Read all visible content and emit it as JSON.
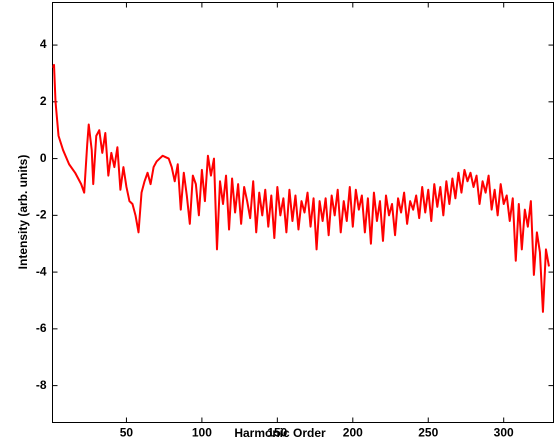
{
  "chart_data": {
    "type": "line",
    "xlabel": "Harmonic Order",
    "ylabel": "Intensity  (arb. units)",
    "xlim": [
      1,
      333
    ],
    "ylim": [
      -9.3,
      5.5
    ],
    "xticks": [
      50,
      100,
      150,
      200,
      250,
      300
    ],
    "yticks": [
      -8,
      -6,
      -4,
      -2,
      0,
      2,
      4
    ],
    "series": [
      {
        "color": "#ff0000",
        "x": [
          1,
          2,
          3,
          5,
          8,
          12,
          16,
          20,
          22,
          24,
          25,
          27,
          28,
          30,
          32,
          34,
          36,
          38,
          40,
          42,
          44,
          46,
          48,
          50,
          52,
          54,
          56,
          58,
          60,
          62,
          64,
          66,
          68,
          70,
          72,
          74,
          76,
          78,
          80,
          82,
          84,
          86,
          88,
          90,
          92,
          94,
          96,
          98,
          100,
          102,
          104,
          106,
          108,
          110,
          112,
          114,
          116,
          118,
          120,
          122,
          124,
          126,
          128,
          130,
          132,
          134,
          136,
          138,
          140,
          142,
          144,
          146,
          148,
          150,
          152,
          154,
          156,
          158,
          160,
          162,
          164,
          166,
          168,
          170,
          172,
          174,
          176,
          178,
          180,
          182,
          184,
          186,
          188,
          190,
          192,
          194,
          196,
          198,
          200,
          202,
          204,
          206,
          208,
          210,
          212,
          214,
          216,
          218,
          220,
          222,
          224,
          226,
          228,
          230,
          232,
          234,
          236,
          238,
          240,
          242,
          244,
          246,
          248,
          250,
          252,
          254,
          256,
          258,
          260,
          262,
          264,
          266,
          268,
          270,
          272,
          274,
          276,
          278,
          280,
          282,
          284,
          286,
          288,
          290,
          292,
          294,
          296,
          298,
          300,
          302,
          304,
          306,
          308,
          310,
          312,
          314,
          316,
          318,
          320,
          322,
          324,
          326,
          328,
          330
        ],
        "values": [
          3.2,
          3.3,
          2.0,
          0.8,
          0.3,
          -0.2,
          -0.5,
          -0.9,
          -1.2,
          0.5,
          1.2,
          0.3,
          -0.9,
          0.8,
          1.0,
          0.2,
          0.9,
          -0.6,
          0.2,
          -0.3,
          0.4,
          -1.1,
          -0.3,
          -1.0,
          -1.5,
          -1.6,
          -2.0,
          -2.6,
          -1.2,
          -0.8,
          -0.5,
          -0.9,
          -0.3,
          -0.1,
          0.0,
          0.1,
          0.05,
          0.0,
          -0.3,
          -0.8,
          -0.2,
          -1.8,
          -0.5,
          -1.3,
          -2.3,
          -0.6,
          -0.9,
          -2.0,
          -0.4,
          -1.5,
          0.1,
          -0.6,
          0.0,
          -3.2,
          -0.8,
          -1.6,
          -0.6,
          -2.5,
          -0.7,
          -1.9,
          -0.9,
          -2.3,
          -1.0,
          -1.5,
          -2.1,
          -0.8,
          -2.6,
          -1.2,
          -2.0,
          -1.1,
          -2.4,
          -1.3,
          -2.8,
          -1.0,
          -2.0,
          -1.4,
          -2.6,
          -1.1,
          -2.2,
          -1.3,
          -2.5,
          -1.5,
          -1.9,
          -1.2,
          -2.4,
          -1.4,
          -3.2,
          -1.5,
          -2.2,
          -1.4,
          -2.7,
          -1.3,
          -2.0,
          -1.1,
          -2.6,
          -1.5,
          -2.2,
          -1.0,
          -2.4,
          -1.1,
          -1.8,
          -1.3,
          -2.6,
          -1.4,
          -3.0,
          -1.2,
          -2.2,
          -1.5,
          -2.9,
          -1.3,
          -2.0,
          -1.6,
          -2.7,
          -1.4,
          -1.9,
          -1.2,
          -2.3,
          -1.5,
          -1.8,
          -1.3,
          -2.1,
          -1.0,
          -1.9,
          -1.1,
          -2.2,
          -0.9,
          -1.7,
          -1.0,
          -2.0,
          -0.8,
          -1.6,
          -0.7,
          -1.4,
          -0.5,
          -1.2,
          -0.4,
          -0.8,
          -0.5,
          -1.0,
          -0.6,
          -1.6,
          -0.8,
          -1.2,
          -0.6,
          -1.8,
          -1.1,
          -2.0,
          -0.9,
          -1.6,
          -1.3,
          -2.2,
          -1.4,
          -3.6,
          -1.6,
          -3.2,
          -1.8,
          -2.4,
          -1.5,
          -4.1,
          -2.6,
          -3.3,
          -5.4,
          -3.2,
          -3.8
        ]
      }
    ]
  }
}
